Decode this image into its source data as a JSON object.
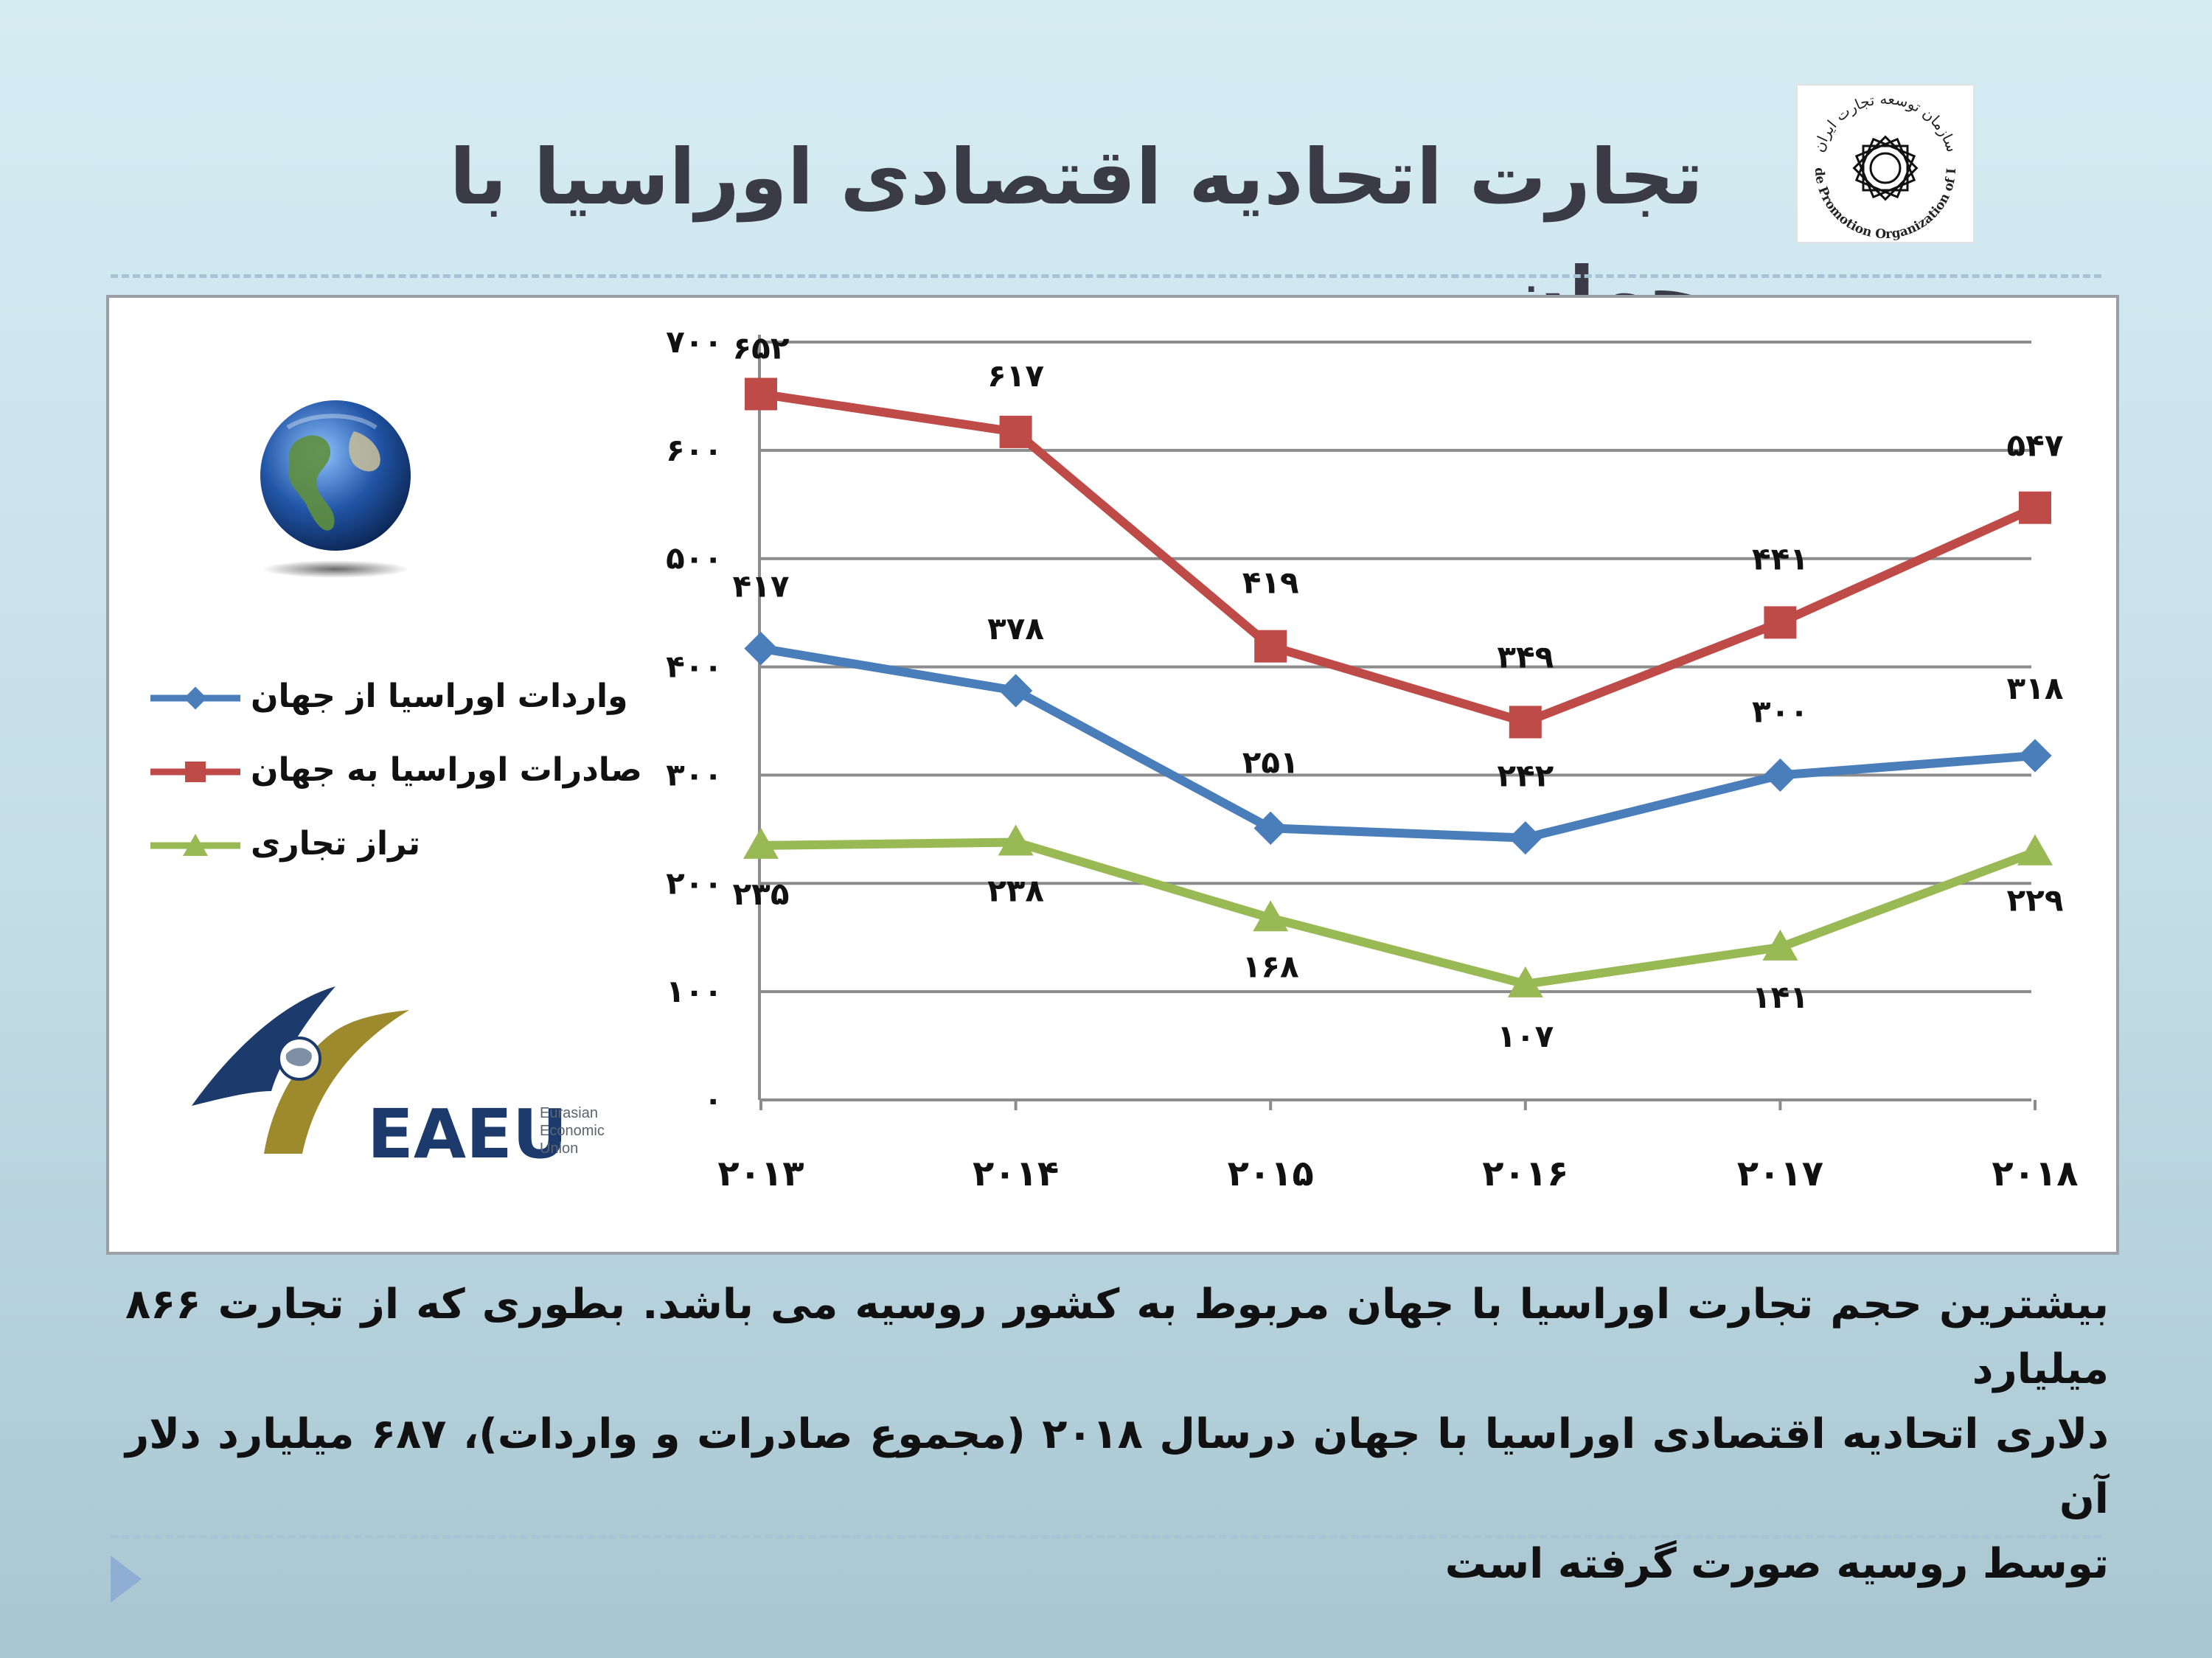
{
  "slide": {
    "title": "تجارت اتحادیه اقتصادی اوراسیا با جهان",
    "caption_lines": [
      "بیشترین حجم تجارت اوراسیا با جهان مربوط به کشور روسیه می باشد. بطوری که از تجارت ۸۶۶ میلیارد",
      "دلاری اتحادیه اقتصادی اوراسیا با جهان درسال ۲۰۱۸ (مجموع صادرات و واردات)، ۶۸۷ میلیارد دلار آن",
      "توسط روسیه صورت گرفته است"
    ]
  },
  "logos": {
    "tpo_persian": "سازمان توسعه تجارت ایران",
    "tpo_english": "Trade Promotion Organization of Iran",
    "eaeu_abbr": "EAEU",
    "eaeu_lines": [
      "Eurasian",
      "Economic",
      "Union"
    ]
  },
  "icons": {
    "earth": "earth-globe-icon",
    "play": "play-arrow-icon"
  },
  "colors": {
    "imports": "#4a7ebb",
    "exports": "#be4b48",
    "balance": "#98b954",
    "grid": "#8c8c8c",
    "eaeu_navy": "#1c3a6b",
    "eaeu_gold": "#9c8a2c"
  },
  "chart_data": {
    "type": "line",
    "title": "",
    "xlabel": "",
    "ylabel": "",
    "categories": [
      "۲۰۱۳",
      "۲۰۱۴",
      "۲۰۱۵",
      "۲۰۱۶",
      "۲۰۱۷",
      "۲۰۱۸"
    ],
    "ylim": [
      0,
      700
    ],
    "yticks": [
      0,
      100,
      200,
      300,
      400,
      500,
      600,
      700
    ],
    "ytick_labels": [
      "۰",
      "۱۰۰",
      "۲۰۰",
      "۳۰۰",
      "۴۰۰",
      "۵۰۰",
      "۶۰۰",
      "۷۰۰"
    ],
    "grid": true,
    "legend_position": "left",
    "series": [
      {
        "name": "واردات اوراسیا از جهان",
        "marker": "diamond",
        "values": [
          417,
          378,
          251,
          242,
          300,
          318
        ],
        "labels": [
          "۴۱۷",
          "۳۷۸",
          "۲۵۱",
          "۲۴۲",
          "۳۰۰",
          "۳۱۸"
        ]
      },
      {
        "name": "صادرات اوراسیا به جهان",
        "marker": "square",
        "values": [
          652,
          617,
          419,
          349,
          441,
          547
        ],
        "labels": [
          "۶۵۲",
          "۶۱۷",
          "۴۱۹",
          "۳۴۹",
          "۴۴۱",
          "۵۴۷"
        ]
      },
      {
        "name": "تراز تجاری",
        "marker": "triangle",
        "values": [
          235,
          238,
          168,
          107,
          141,
          229
        ],
        "labels": [
          "۲۳۵",
          "۲۳۸",
          "۱۶۸",
          "۱۰۷",
          "۱۴۱",
          "۲۲۹"
        ]
      }
    ]
  }
}
